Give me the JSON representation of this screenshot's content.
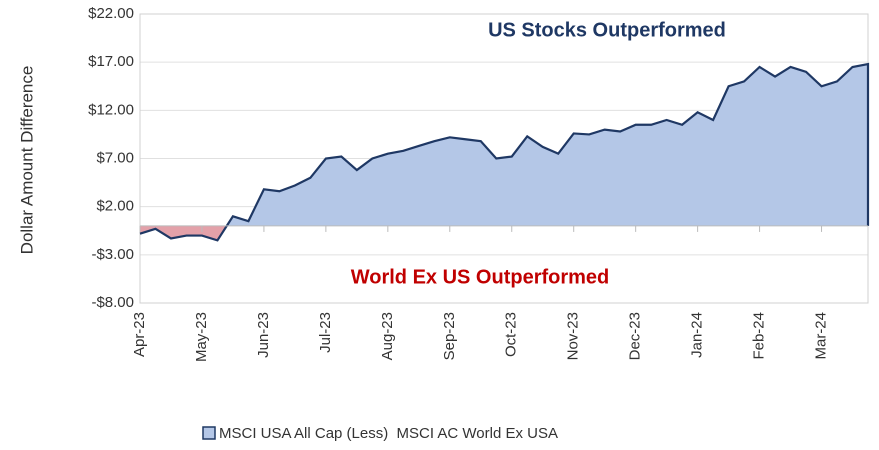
{
  "chart_data": {
    "type": "area",
    "ylabel": "Dollar Amount Difference",
    "annotations": [
      "US Stocks Outperformed",
      "World Ex US Outperformed"
    ],
    "categories": [
      "Apr-23",
      null,
      null,
      null,
      "May-23",
      null,
      null,
      null,
      "Jun-23",
      null,
      null,
      null,
      "Jul-23",
      null,
      null,
      null,
      "Aug-23",
      null,
      null,
      null,
      "Sep-23",
      null,
      null,
      null,
      "Oct-23",
      null,
      null,
      null,
      "Nov-23",
      null,
      null,
      null,
      "Dec-23",
      null,
      null,
      null,
      "Jan-24",
      null,
      null,
      null,
      "Feb-24",
      null,
      null,
      null,
      "Mar-24",
      null,
      null,
      null
    ],
    "series": [
      {
        "name": "MSCI USA All Cap (Less)  MSCI AC World Ex USA",
        "color": "#b4c7e7",
        "line_color": "#1f3864",
        "negative_color": "#e3a1a9",
        "values": [
          -0.8,
          -0.3,
          -1.3,
          -1.0,
          -1.0,
          -1.5,
          1.0,
          0.5,
          3.8,
          3.6,
          4.2,
          5.0,
          7.0,
          7.2,
          5.8,
          7.0,
          7.5,
          7.8,
          8.3,
          8.8,
          9.2,
          9.0,
          8.8,
          7.0,
          7.2,
          9.3,
          8.2,
          7.5,
          9.6,
          9.5,
          10.0,
          9.8,
          10.5,
          10.5,
          11.0,
          10.5,
          11.8,
          11.0,
          14.5,
          15.0,
          16.5,
          15.5,
          16.5,
          16.0,
          14.5,
          15.0,
          16.5,
          16.8
        ]
      }
    ],
    "ylim": [
      -8,
      22
    ],
    "yticks": [
      {
        "value": -8,
        "label": "-$8.00"
      },
      {
        "value": -3,
        "label": "-$3.00"
      },
      {
        "value": 2,
        "label": "$2.00"
      },
      {
        "value": 7,
        "label": "$7.00"
      },
      {
        "value": 12,
        "label": "$12.00"
      },
      {
        "value": 17,
        "label": "$17.00"
      },
      {
        "value": 22,
        "label": "$22.00"
      }
    ],
    "grid": true
  }
}
